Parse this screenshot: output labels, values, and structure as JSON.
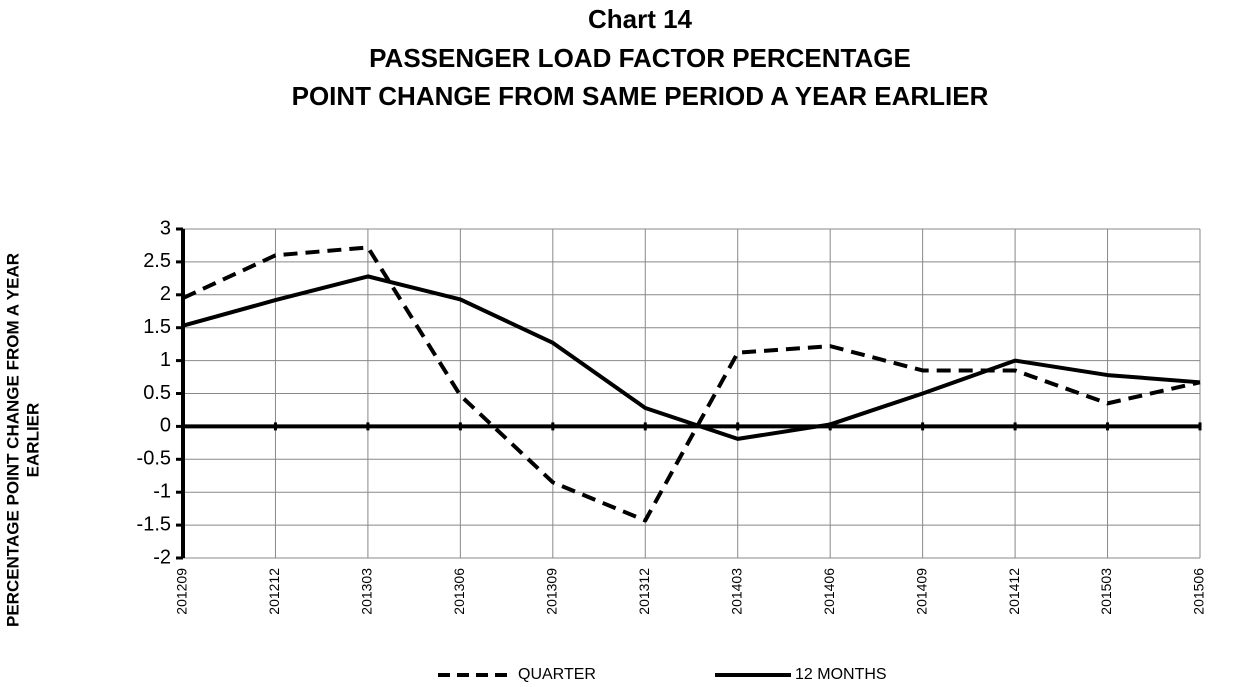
{
  "chart_data": {
    "type": "line",
    "title": [
      "Chart 14",
      "PASSENGER LOAD FACTOR PERCENTAGE",
      "POINT CHANGE FROM SAME PERIOD A YEAR EARLIER"
    ],
    "y_label": [
      "PERCENTAGE POINT CHANGE FROM A YEAR",
      "EARLIER"
    ],
    "categories": [
      "201209",
      "201212",
      "201303",
      "201306",
      "201309",
      "201312",
      "201403",
      "201406",
      "201409",
      "201412",
      "201503",
      "201506"
    ],
    "series": [
      {
        "name": "QUARTER",
        "color": "#000000",
        "dashed": true,
        "values": [
          1.95,
          2.6,
          2.72,
          0.47,
          -0.85,
          -1.43,
          1.12,
          1.22,
          0.85,
          0.85,
          0.35,
          0.67
        ]
      },
      {
        "name": "12 MONTHS",
        "color": "#000000",
        "dashed": false,
        "values": [
          1.53,
          1.92,
          2.28,
          1.93,
          1.27,
          0.28,
          -0.19,
          0.03,
          0.5,
          1.0,
          0.78,
          0.67
        ]
      }
    ],
    "ylim": [
      -2,
      3
    ],
    "yticks": [
      -2,
      -1.5,
      -1,
      -0.5,
      0,
      0.5,
      1,
      1.5,
      2,
      2.5,
      3
    ],
    "grid": true,
    "legend": "bottom"
  }
}
